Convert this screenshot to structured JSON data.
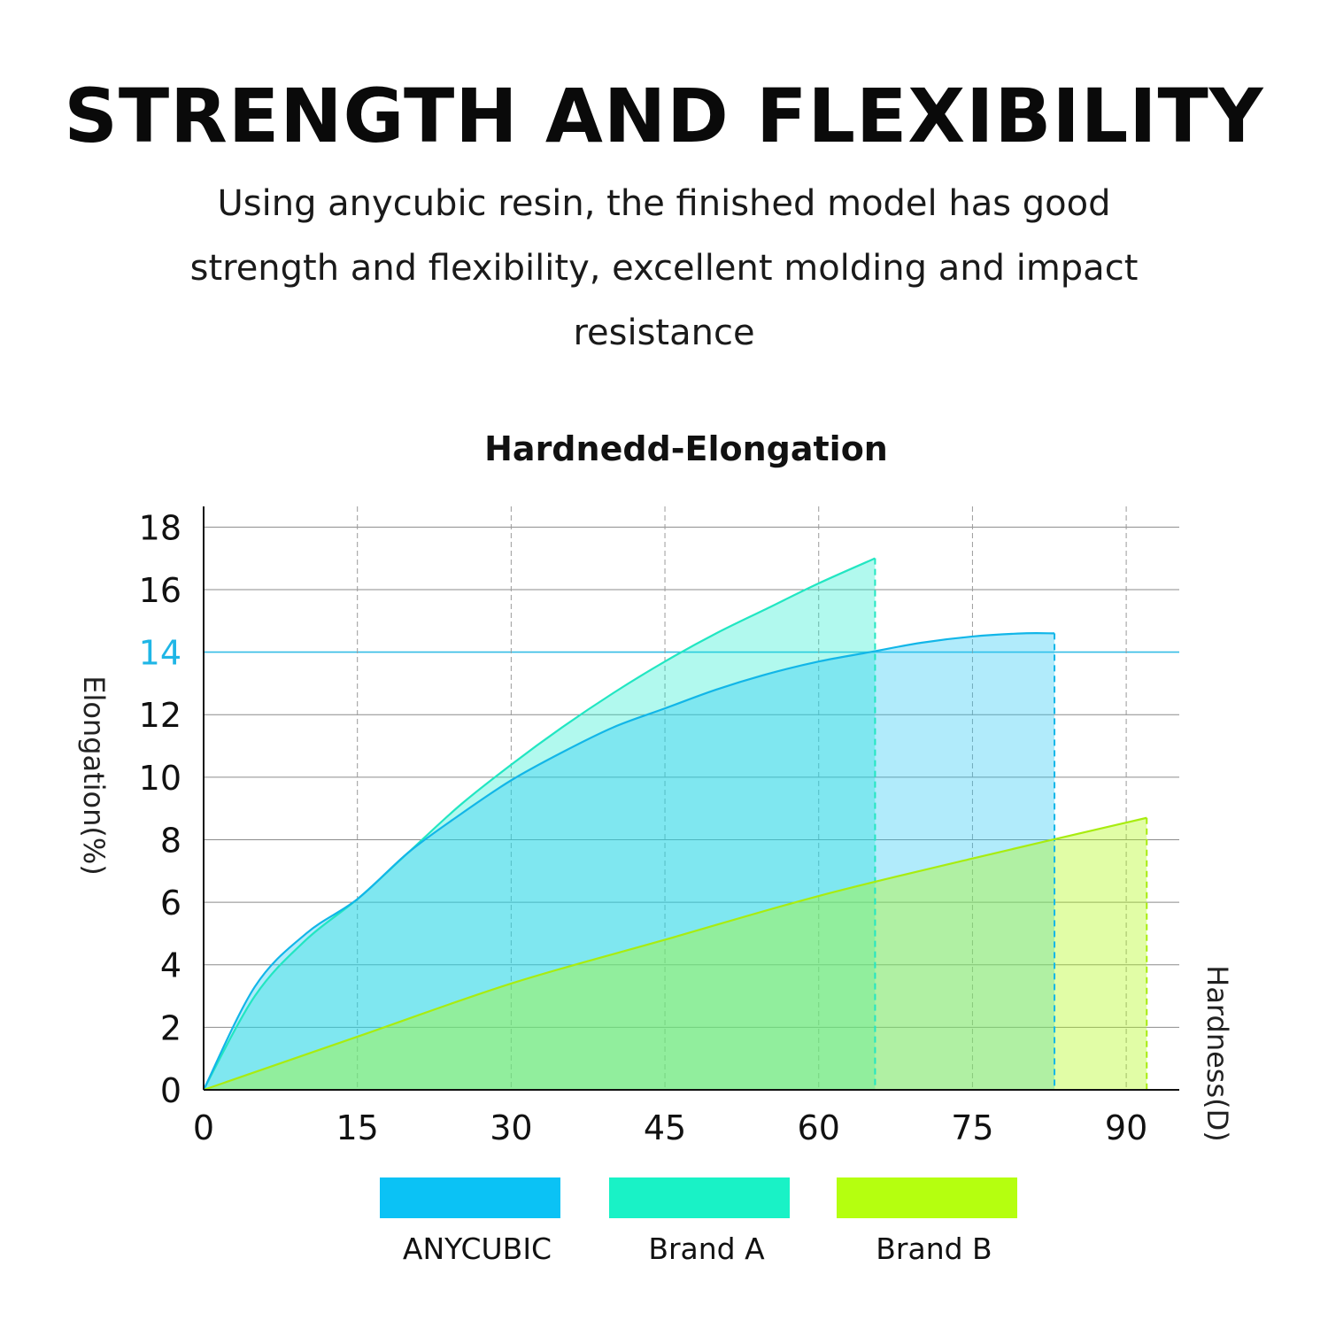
{
  "header": {
    "title": "STRENGTH AND FLEXIBILITY",
    "subtitle": "Using anycubic resin, the finished model has good strength and flexibility, excellent molding and impact resistance"
  },
  "chart_data": {
    "type": "area",
    "title": "Hardnedd-Elongation",
    "xlabel": "Hardness(D)",
    "ylabel": "Elongation(%)",
    "xlim": [
      0,
      95
    ],
    "ylim": [
      0,
      19
    ],
    "x_ticks": [
      "0",
      "15",
      "30",
      "45",
      "60",
      "75",
      "90"
    ],
    "y_ticks": [
      "0",
      "2",
      "4",
      "6",
      "8",
      "10",
      "12",
      "14",
      "16",
      "18"
    ],
    "highlight_y": 14,
    "grid": true,
    "legend_position": "bottom",
    "series": [
      {
        "name": "ANYCUBIC",
        "color": "#0bc2f5",
        "x": [
          0,
          5,
          10,
          15,
          20,
          25,
          30,
          35,
          40,
          45,
          50,
          55,
          60,
          65,
          70,
          75,
          80,
          83
        ],
        "values": [
          0,
          3.3,
          5.0,
          6.1,
          7.6,
          8.8,
          9.9,
          10.8,
          11.6,
          12.2,
          12.8,
          13.3,
          13.7,
          14.0,
          14.3,
          14.5,
          14.6,
          14.6
        ]
      },
      {
        "name": "Brand A",
        "color": "#19f2c6",
        "x": [
          0,
          5,
          10,
          15,
          20,
          25,
          30,
          35,
          40,
          45,
          50,
          55,
          60,
          65.5
        ],
        "values": [
          0,
          3.0,
          4.8,
          6.1,
          7.6,
          9.1,
          10.4,
          11.6,
          12.7,
          13.7,
          14.6,
          15.4,
          16.2,
          17.0
        ]
      },
      {
        "name": "Brand B",
        "color": "#b5ff0f",
        "x": [
          0,
          15,
          30,
          45,
          60,
          75,
          92
        ],
        "values": [
          0,
          1.7,
          3.4,
          4.8,
          6.2,
          7.4,
          8.7
        ]
      }
    ]
  }
}
